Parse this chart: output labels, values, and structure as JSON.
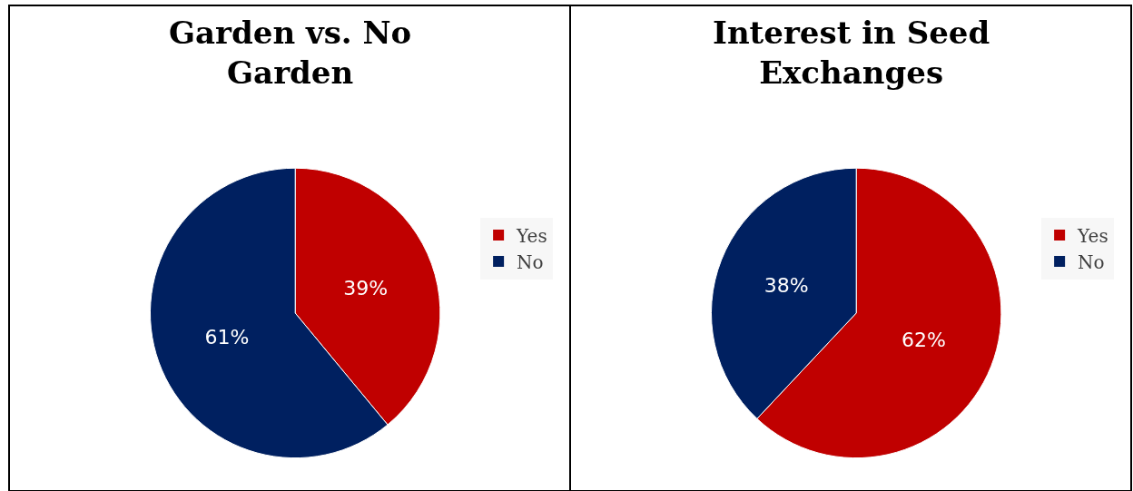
{
  "chart_data": [
    {
      "type": "pie",
      "title": "Garden vs. No Garden",
      "categories": [
        "Yes",
        "No"
      ],
      "values": [
        39,
        61
      ],
      "colors": [
        "#c00000",
        "#002060"
      ],
      "value_labels": [
        "39%",
        "61%"
      ],
      "legend": "right"
    },
    {
      "type": "pie",
      "title": "Interest in Seed Exchanges",
      "categories": [
        "Yes",
        "No"
      ],
      "values": [
        62,
        38
      ],
      "colors": [
        "#c00000",
        "#002060"
      ],
      "value_labels": [
        "62%",
        "38%"
      ],
      "legend": "right"
    }
  ]
}
